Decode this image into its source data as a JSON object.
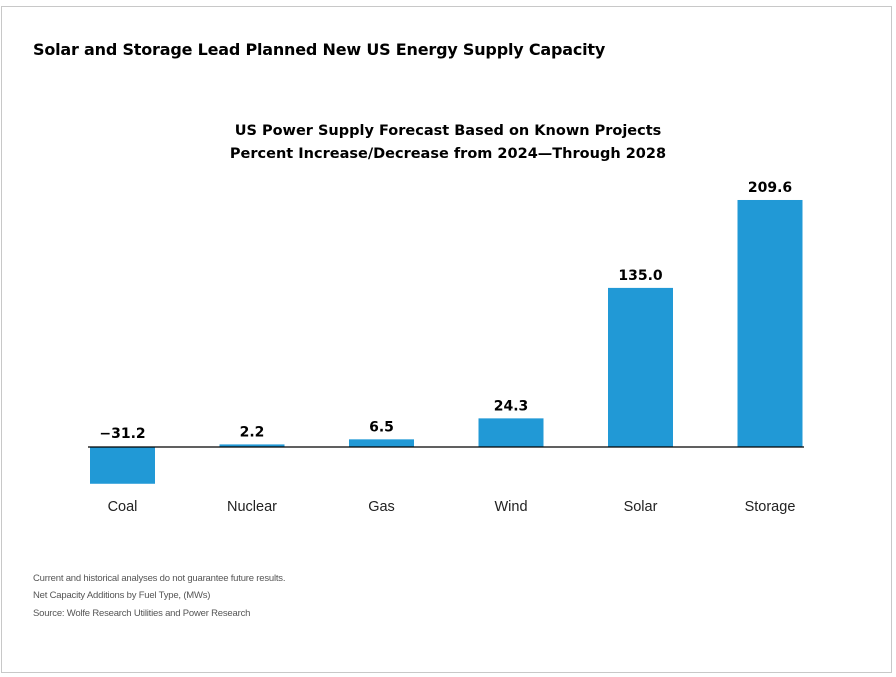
{
  "headline": "Solar and Storage Lead Planned New US Energy Supply Capacity",
  "chart_data": {
    "type": "bar",
    "title": "US Power Supply Forecast Based on Known Projects",
    "subtitle": "Percent Increase/Decrease from 2024—Through 2028",
    "categories": [
      "Coal",
      "Nuclear",
      "Gas",
      "Wind",
      "Solar",
      "Storage"
    ],
    "values": [
      -31.2,
      2.2,
      6.5,
      24.3,
      135.0,
      209.6
    ],
    "value_labels": [
      "−31.2",
      "2.2",
      "6.5",
      "24.3",
      "135.0",
      "209.6"
    ],
    "xlabel": "",
    "ylabel": "",
    "grid": false,
    "legend": "none",
    "bar_color": "#2199d6",
    "axis_color": "#000000"
  },
  "footnotes": [
    "Current and historical analyses do not guarantee future results.",
    "Net Capacity Additions by Fuel Type, (MWs)",
    "Source: Wolfe Research Utilities and Power Research"
  ]
}
